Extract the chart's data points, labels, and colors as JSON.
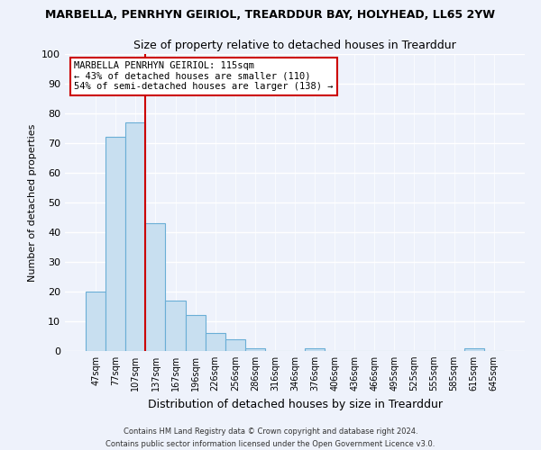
{
  "title1": "MARBELLA, PENRHYN GEIRIOL, TREARDDUR BAY, HOLYHEAD, LL65 2YW",
  "title2": "Size of property relative to detached houses in Trearddur",
  "xlabel": "Distribution of detached houses by size in Trearddur",
  "ylabel": "Number of detached properties",
  "bar_labels": [
    "47sqm",
    "77sqm",
    "107sqm",
    "137sqm",
    "167sqm",
    "196sqm",
    "226sqm",
    "256sqm",
    "286sqm",
    "316sqm",
    "346sqm",
    "376sqm",
    "406sqm",
    "436sqm",
    "466sqm",
    "495sqm",
    "525sqm",
    "555sqm",
    "585sqm",
    "615sqm",
    "645sqm"
  ],
  "bar_values": [
    20,
    72,
    77,
    43,
    17,
    12,
    6,
    4,
    1,
    0,
    0,
    1,
    0,
    0,
    0,
    0,
    0,
    0,
    0,
    1,
    0
  ],
  "bar_color": "#c8dff0",
  "bar_edge_color": "#6aaed6",
  "ylim": [
    0,
    100
  ],
  "yticks": [
    0,
    10,
    20,
    30,
    40,
    50,
    60,
    70,
    80,
    90,
    100
  ],
  "annotation_title": "MARBELLA PENRHYN GEIRIOL: 115sqm",
  "annotation_line1": "← 43% of detached houses are smaller (110)",
  "annotation_line2": "54% of semi-detached houses are larger (138) →",
  "footnote1": "Contains HM Land Registry data © Crown copyright and database right 2024.",
  "footnote2": "Contains public sector information licensed under the Open Government Licence v3.0.",
  "bg_color": "#eef2fb",
  "grid_color": "#ffffff",
  "annotation_box_color": "#ffffff",
  "annotation_box_edge": "#cc0000",
  "vline_color": "#cc0000",
  "vline_x": 2.5
}
